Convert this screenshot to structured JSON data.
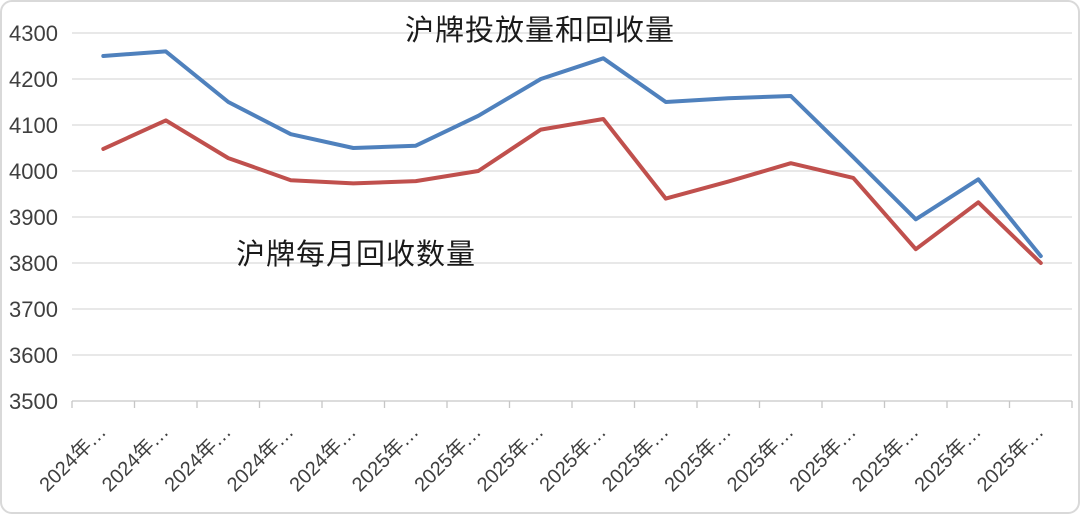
{
  "chart": {
    "title": "沪牌投放量和回收量",
    "annotation": "沪牌每月回收数量",
    "colors": {
      "series_release": "#4F81BD",
      "series_recycle": "#C0504D",
      "gridline": "#D9D9D9",
      "axis_line": "#C6C6C6",
      "tick_label": "#3F3F3F",
      "title_text": "#1A1A1A",
      "background": "#FFFFFF",
      "frame": "#D9D9D9"
    }
  },
  "chart_data": {
    "type": "line",
    "title": "沪牌投放量和回收量",
    "annotation": "沪牌每月回收数量",
    "categories": [
      "2024年…",
      "2024年…",
      "2024年…",
      "2024年…",
      "2024年…",
      "2025年…",
      "2025年…",
      "2025年…",
      "2025年…",
      "2025年…",
      "2025年…",
      "2025年…",
      "2025年…",
      "2025年…",
      "2025年…",
      "2025年…"
    ],
    "series": [
      {
        "name": "沪牌投放量",
        "color": "#4F81BD",
        "values": [
          4250,
          4260,
          4150,
          4080,
          4050,
          4055,
          4120,
          4200,
          4245,
          4150,
          4158,
          4163,
          4030,
          3895,
          3982,
          3815
        ]
      },
      {
        "name": "沪牌每月回收数量",
        "color": "#C0504D",
        "values": [
          4048,
          4110,
          4028,
          3980,
          3973,
          3978,
          4000,
          4090,
          4113,
          3940,
          3977,
          4017,
          3985,
          3830,
          3932,
          3800
        ]
      }
    ],
    "xlabel": "",
    "ylabel": "",
    "ylim": [
      3500,
      4300
    ],
    "ytick_step": 100,
    "yticks": [
      4300,
      4200,
      4100,
      4000,
      3900,
      3800,
      3700,
      3600,
      3500
    ],
    "grid": "horizontal",
    "legend_position": "none",
    "x_label_rotation": -45
  }
}
